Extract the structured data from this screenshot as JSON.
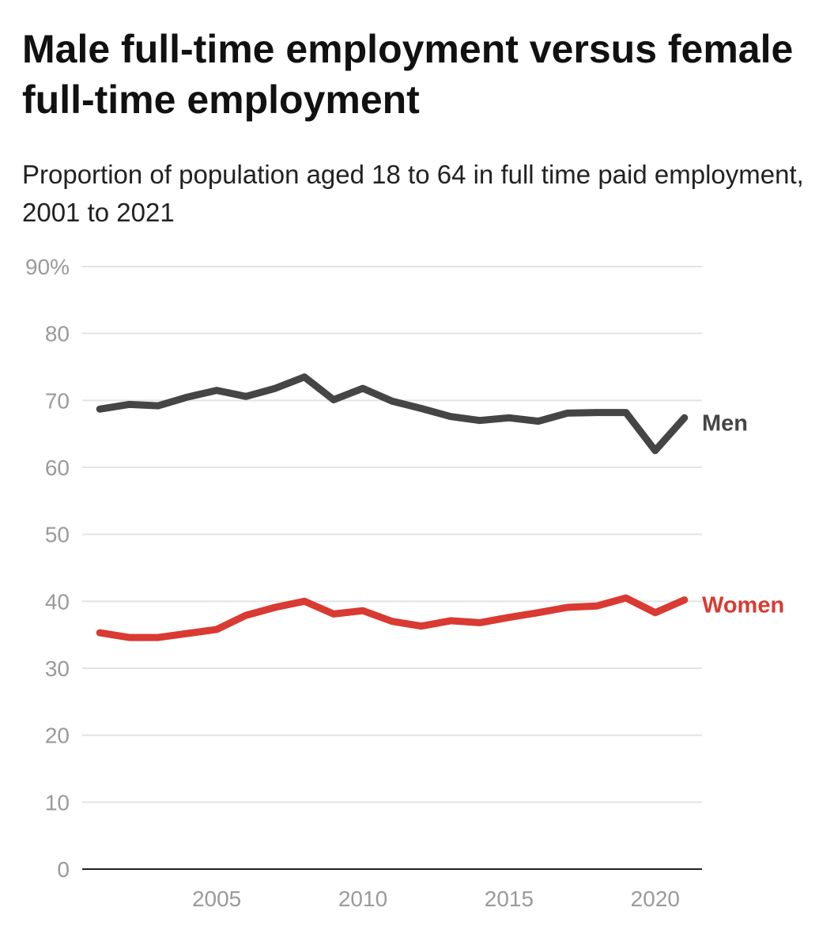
{
  "title": "Male full-time employment versus female full-time employment",
  "subtitle": "Proportion of population aged 18 to 64 in full time paid employment, 2001 to 2021",
  "chart_data": {
    "type": "line",
    "title": "Male full-time employment versus female full-time employment",
    "subtitle": "Proportion of population aged 18 to 64 in full time paid employment, 2001 to 2021",
    "xlabel": "",
    "ylabel": "",
    "x": [
      2001,
      2002,
      2003,
      2004,
      2005,
      2006,
      2007,
      2008,
      2009,
      2010,
      2011,
      2012,
      2013,
      2014,
      2015,
      2016,
      2017,
      2018,
      2019,
      2020,
      2021
    ],
    "xlim": [
      2000.4,
      2021.6
    ],
    "ylim": [
      0,
      90
    ],
    "y_ticks": [
      0,
      10,
      20,
      30,
      40,
      50,
      60,
      70,
      80
    ],
    "y_ticks_top_label": "90%",
    "x_ticks": [
      2005,
      2010,
      2015,
      2020
    ],
    "grid": true,
    "legend": "direct labels at line ends",
    "series": [
      {
        "name": "Men",
        "color": "#454545",
        "values": [
          68.7,
          69.4,
          69.2,
          70.5,
          71.5,
          70.6,
          71.8,
          73.5,
          70.1,
          71.8,
          69.9,
          68.8,
          67.6,
          67.0,
          67.4,
          66.9,
          68.1,
          68.2,
          68.2,
          62.5,
          67.4
        ]
      },
      {
        "name": "Women",
        "color": "#d93a32",
        "values": [
          35.3,
          34.6,
          34.6,
          35.2,
          35.8,
          37.9,
          39.1,
          40.0,
          38.1,
          38.6,
          37.0,
          36.3,
          37.1,
          36.8,
          37.6,
          38.3,
          39.1,
          39.3,
          40.5,
          38.3,
          40.2
        ]
      }
    ]
  }
}
